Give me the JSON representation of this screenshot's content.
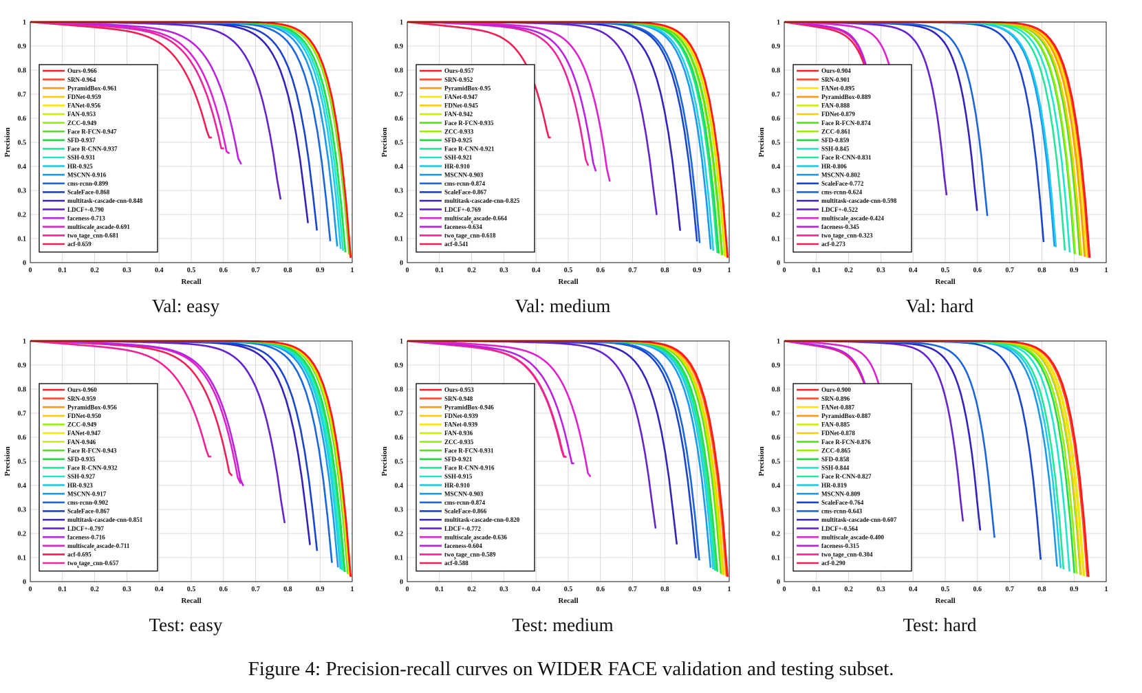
{
  "caption": "Figure 4: Precision-recall curves on WIDER FACE validation and testing subset.",
  "colors": {
    "Ours": "#ff1a1a",
    "SRN": "#ff4d26",
    "PyramidBox": "#ff9910",
    "FDNet": "#ffcc00",
    "FANet": "#ffe600",
    "FAN": "#c8f000",
    "ZCC": "#99ee00",
    "Face R-FCN": "#55e020",
    "SFD": "#22dd44",
    "Face R-CNN": "#22e699",
    "SSH": "#1ee6cc",
    "HR": "#22ccee",
    "MSCNN": "#1a99ee",
    "cms-rcnn": "#1a66dd",
    "ScaleFace": "#1a44cc",
    "multitask-cascade-cnn": "#3322bb",
    "LDCF+": "#6622cc",
    "faceness": "#bb22dd",
    "multiscale_cascade": "#dd22cc",
    "two_stage_cnn": "#ee2299",
    "acf": "#ee1f55"
  },
  "chart_data": [
    {
      "type": "line",
      "title": "Val: easy",
      "xlabel": "Recall",
      "ylabel": "Precision",
      "xlim": [
        0,
        1
      ],
      "ylim": [
        0,
        1
      ],
      "xticks": [
        "0",
        "0.1",
        "0.2",
        "0.3",
        "0.4",
        "0.5",
        "0.6",
        "0.7",
        "0.8",
        "0.9",
        "1"
      ],
      "yticks": [
        "0",
        "0.1",
        "0.2",
        "0.3",
        "0.4",
        "0.5",
        "0.6",
        "0.7",
        "0.8",
        "0.9",
        "1"
      ],
      "legend_position": "bottom-left",
      "series": [
        {
          "name": "Ours",
          "label": "Ours-0.966",
          "ap": 0.966
        },
        {
          "name": "SRN",
          "label": "SRN-0.964",
          "ap": 0.964
        },
        {
          "name": "PyramidBox",
          "label": "PyramidBox-0.961",
          "ap": 0.961
        },
        {
          "name": "FDNet",
          "label": "FDNet-0.959",
          "ap": 0.959
        },
        {
          "name": "FANet",
          "label": "FANet-0.956",
          "ap": 0.956
        },
        {
          "name": "FAN",
          "label": "FAN-0.953",
          "ap": 0.953
        },
        {
          "name": "ZCC",
          "label": "ZCC-0.949",
          "ap": 0.949
        },
        {
          "name": "Face R-FCN",
          "label": "Face R-FCN-0.947",
          "ap": 0.947
        },
        {
          "name": "SFD",
          "label": "SFD-0.937",
          "ap": 0.937
        },
        {
          "name": "Face R-CNN",
          "label": "Face R-CNN-0.937",
          "ap": 0.937
        },
        {
          "name": "SSH",
          "label": "SSH-0.931",
          "ap": 0.931
        },
        {
          "name": "HR",
          "label": "HR-0.925",
          "ap": 0.925
        },
        {
          "name": "MSCNN",
          "label": "MSCNN-0.916",
          "ap": 0.916
        },
        {
          "name": "cms-rcnn",
          "label": "cms-rcnn-0.899",
          "ap": 0.899
        },
        {
          "name": "ScaleFace",
          "label": "ScaleFace-0.868",
          "ap": 0.868
        },
        {
          "name": "multitask-cascade-cnn",
          "label": "multitask-cascade-cnn-0.848",
          "ap": 0.848
        },
        {
          "name": "LDCF+",
          "label": "LDCF+-0.790",
          "ap": 0.79
        },
        {
          "name": "faceness",
          "label": "faceness-0.713",
          "ap": 0.713
        },
        {
          "name": "multiscale_cascade",
          "label": "multiscale_cascade-0.691",
          "ap": 0.691
        },
        {
          "name": "two_stage_cnn",
          "label": "two_stage_cnn-0.681",
          "ap": 0.681
        },
        {
          "name": "acf",
          "label": "acf-0.659",
          "ap": 0.659
        }
      ]
    },
    {
      "type": "line",
      "title": "Val: medium",
      "xlabel": "Recall",
      "ylabel": "Precision",
      "xlim": [
        0,
        1
      ],
      "ylim": [
        0,
        1
      ],
      "xticks": [
        "0",
        "0.1",
        "0.2",
        "0.3",
        "0.4",
        "0.5",
        "0.6",
        "0.7",
        "0.8",
        "0.9",
        "1"
      ],
      "yticks": [
        "0",
        "0.1",
        "0.2",
        "0.3",
        "0.4",
        "0.5",
        "0.6",
        "0.7",
        "0.8",
        "0.9",
        "1"
      ],
      "legend_position": "bottom-left",
      "series": [
        {
          "name": "Ours",
          "label": "Ours-0.957",
          "ap": 0.957
        },
        {
          "name": "SRN",
          "label": "SRN-0.952",
          "ap": 0.952
        },
        {
          "name": "PyramidBox",
          "label": "PyramidBox-0.95",
          "ap": 0.95
        },
        {
          "name": "FANet",
          "label": "FANet-0.947",
          "ap": 0.947
        },
        {
          "name": "FDNet",
          "label": "FDNet-0.945",
          "ap": 0.945
        },
        {
          "name": "FAN",
          "label": "FAN-0.942",
          "ap": 0.942
        },
        {
          "name": "Face R-FCN",
          "label": "Face R-FCN-0.935",
          "ap": 0.935
        },
        {
          "name": "ZCC",
          "label": "ZCC-0.933",
          "ap": 0.933
        },
        {
          "name": "SFD",
          "label": "SFD-0.925",
          "ap": 0.925
        },
        {
          "name": "Face R-CNN",
          "label": "Face R-CNN-0.921",
          "ap": 0.921
        },
        {
          "name": "SSH",
          "label": "SSH-0.921",
          "ap": 0.921
        },
        {
          "name": "HR",
          "label": "HR-0.910",
          "ap": 0.91
        },
        {
          "name": "MSCNN",
          "label": "MSCNN-0.903",
          "ap": 0.903
        },
        {
          "name": "cms-rcnn",
          "label": "cms-rcnn-0.874",
          "ap": 0.874
        },
        {
          "name": "ScaleFace",
          "label": "ScaleFace-0.867",
          "ap": 0.867
        },
        {
          "name": "multitask-cascade-cnn",
          "label": "multitask-cascade-cnn-0.825",
          "ap": 0.825
        },
        {
          "name": "LDCF+",
          "label": "LDCF+-0.769",
          "ap": 0.769
        },
        {
          "name": "multiscale_cascade",
          "label": "multiscale_cascade-0.664",
          "ap": 0.664
        },
        {
          "name": "faceness",
          "label": "faceness-0.634",
          "ap": 0.634
        },
        {
          "name": "two_stage_cnn",
          "label": "two_stage_cnn-0.618",
          "ap": 0.618
        },
        {
          "name": "acf",
          "label": "acf-0.541",
          "ap": 0.541
        }
      ]
    },
    {
      "type": "line",
      "title": "Val: hard",
      "xlabel": "Recall",
      "ylabel": "Precision",
      "xlim": [
        0,
        1
      ],
      "ylim": [
        0,
        1
      ],
      "xticks": [
        "0",
        "0.1",
        "0.2",
        "0.3",
        "0.4",
        "0.5",
        "0.6",
        "0.7",
        "0.8",
        "0.9",
        "1"
      ],
      "yticks": [
        "0",
        "0.1",
        "0.2",
        "0.3",
        "0.4",
        "0.5",
        "0.6",
        "0.7",
        "0.8",
        "0.9",
        "1"
      ],
      "legend_position": "bottom-left",
      "series": [
        {
          "name": "Ours",
          "label": "Ours-0.904",
          "ap": 0.904
        },
        {
          "name": "SRN",
          "label": "SRN-0.901",
          "ap": 0.901
        },
        {
          "name": "FANet",
          "label": "FANet-0.895",
          "ap": 0.895
        },
        {
          "name": "PyramidBox",
          "label": "PyramidBox-0.889",
          "ap": 0.889
        },
        {
          "name": "FAN",
          "label": "FAN-0.888",
          "ap": 0.888
        },
        {
          "name": "FDNet",
          "label": "FDNet-0.879",
          "ap": 0.879
        },
        {
          "name": "Face R-FCN",
          "label": "Face R-FCN-0.874",
          "ap": 0.874
        },
        {
          "name": "ZCC",
          "label": "ZCC-0.861",
          "ap": 0.861
        },
        {
          "name": "SFD",
          "label": "SFD-0.859",
          "ap": 0.859
        },
        {
          "name": "SSH",
          "label": "SSH-0.845",
          "ap": 0.845
        },
        {
          "name": "Face R-CNN",
          "label": "Face R-CNN-0.831",
          "ap": 0.831
        },
        {
          "name": "HR",
          "label": "HR-0.806",
          "ap": 0.806
        },
        {
          "name": "MSCNN",
          "label": "MSCNN-0.802",
          "ap": 0.802
        },
        {
          "name": "ScaleFace",
          "label": "ScaleFace-0.772",
          "ap": 0.772
        },
        {
          "name": "cms-rcnn",
          "label": "cms-rcnn-0.624",
          "ap": 0.624
        },
        {
          "name": "multitask-cascade-cnn",
          "label": "multitask-cascade-cnn-0.598",
          "ap": 0.598
        },
        {
          "name": "LDCF+",
          "label": "LDCF+-0.522",
          "ap": 0.522
        },
        {
          "name": "multiscale_cascade",
          "label": "multiscale_cascade-0.424",
          "ap": 0.424
        },
        {
          "name": "faceness",
          "label": "faceness-0.345",
          "ap": 0.345
        },
        {
          "name": "two_stage_cnn",
          "label": "two_stage_cnn-0.323",
          "ap": 0.323
        },
        {
          "name": "acf",
          "label": "acf-0.273",
          "ap": 0.273
        }
      ]
    },
    {
      "type": "line",
      "title": "Test: easy",
      "xlabel": "Recall",
      "ylabel": "Precision",
      "xlim": [
        0,
        1
      ],
      "ylim": [
        0,
        1
      ],
      "xticks": [
        "0",
        "0.1",
        "0.2",
        "0.3",
        "0.4",
        "0.5",
        "0.6",
        "0.7",
        "0.8",
        "0.9",
        "1"
      ],
      "yticks": [
        "0",
        "0.1",
        "0.2",
        "0.3",
        "0.4",
        "0.5",
        "0.6",
        "0.7",
        "0.8",
        "0.9",
        "1"
      ],
      "legend_position": "bottom-left",
      "series": [
        {
          "name": "Ours",
          "label": "Ours-0.960",
          "ap": 0.96
        },
        {
          "name": "SRN",
          "label": "SRN-0.959",
          "ap": 0.959
        },
        {
          "name": "PyramidBox",
          "label": "PyramidBox-0.956",
          "ap": 0.956
        },
        {
          "name": "FDNet",
          "label": "FDNet-0.950",
          "ap": 0.95
        },
        {
          "name": "ZCC",
          "label": "ZCC-0.949",
          "ap": 0.949
        },
        {
          "name": "FANet",
          "label": "FANet-0.947",
          "ap": 0.947
        },
        {
          "name": "FAN",
          "label": "FAN-0.946",
          "ap": 0.946
        },
        {
          "name": "Face R-FCN",
          "label": "Face R-FCN-0.943",
          "ap": 0.943
        },
        {
          "name": "SFD",
          "label": "SFD-0.935",
          "ap": 0.935
        },
        {
          "name": "Face R-CNN",
          "label": "Face R-CNN-0.932",
          "ap": 0.932
        },
        {
          "name": "SSH",
          "label": "SSH-0.927",
          "ap": 0.927
        },
        {
          "name": "HR",
          "label": "HR-0.923",
          "ap": 0.923
        },
        {
          "name": "MSCNN",
          "label": "MSCNN-0.917",
          "ap": 0.917
        },
        {
          "name": "cms-rcnn",
          "label": "cms-rcnn-0.902",
          "ap": 0.902
        },
        {
          "name": "ScaleFace",
          "label": "ScaleFace-0.867",
          "ap": 0.867
        },
        {
          "name": "multitask-cascade-cnn",
          "label": "multitask-cascade-cnn-0.851",
          "ap": 0.851
        },
        {
          "name": "LDCF+",
          "label": "LDCF+-0.797",
          "ap": 0.797
        },
        {
          "name": "faceness",
          "label": "faceness-0.716",
          "ap": 0.716
        },
        {
          "name": "multiscale_cascade",
          "label": "multiscale_cascade-0.711",
          "ap": 0.711
        },
        {
          "name": "acf",
          "label": "acf-0.695",
          "ap": 0.695
        },
        {
          "name": "two_stage_cnn",
          "label": "two_stage_cnn-0.657",
          "ap": 0.657
        }
      ]
    },
    {
      "type": "line",
      "title": "Test: medium",
      "xlabel": "Recall",
      "ylabel": "Precision",
      "xlim": [
        0,
        1
      ],
      "ylim": [
        0,
        1
      ],
      "xticks": [
        "0",
        "0.1",
        "0.2",
        "0.3",
        "0.4",
        "0.5",
        "0.6",
        "0.7",
        "0.8",
        "0.9",
        "1"
      ],
      "yticks": [
        "0",
        "0.1",
        "0.2",
        "0.3",
        "0.4",
        "0.5",
        "0.6",
        "0.7",
        "0.8",
        "0.9",
        "1"
      ],
      "legend_position": "bottom-left",
      "series": [
        {
          "name": "Ours",
          "label": "Ours-0.953",
          "ap": 0.953
        },
        {
          "name": "SRN",
          "label": "SRN-0.948",
          "ap": 0.948
        },
        {
          "name": "PyramidBox",
          "label": "PyramidBox-0.946",
          "ap": 0.946
        },
        {
          "name": "FDNet",
          "label": "FDNet-0.939",
          "ap": 0.939
        },
        {
          "name": "FANet",
          "label": "FANet-0.939",
          "ap": 0.939
        },
        {
          "name": "FAN",
          "label": "FAN-0.936",
          "ap": 0.936
        },
        {
          "name": "ZCC",
          "label": "ZCC-0.935",
          "ap": 0.935
        },
        {
          "name": "Face R-FCN",
          "label": "Face R-FCN-0.931",
          "ap": 0.931
        },
        {
          "name": "SFD",
          "label": "SFD-0.921",
          "ap": 0.921
        },
        {
          "name": "Face R-CNN",
          "label": "Face R-CNN-0.916",
          "ap": 0.916
        },
        {
          "name": "SSH",
          "label": "SSH-0.915",
          "ap": 0.915
        },
        {
          "name": "HR",
          "label": "HR-0.910",
          "ap": 0.91
        },
        {
          "name": "MSCNN",
          "label": "MSCNN-0.903",
          "ap": 0.903
        },
        {
          "name": "cms-rcnn",
          "label": "cms-rcnn-0.874",
          "ap": 0.874
        },
        {
          "name": "ScaleFace",
          "label": "ScaleFace-0.866",
          "ap": 0.866
        },
        {
          "name": "multitask-cascade-cnn",
          "label": "multitask-cascade-cnn-0.820",
          "ap": 0.82
        },
        {
          "name": "LDCF+",
          "label": "LDCF+-0.772",
          "ap": 0.772
        },
        {
          "name": "multiscale_cascade",
          "label": "multiscale_cascade-0.636",
          "ap": 0.636
        },
        {
          "name": "faceness",
          "label": "faceness-0.604",
          "ap": 0.604
        },
        {
          "name": "two_stage_cnn",
          "label": "two_stage_cnn-0.589",
          "ap": 0.589
        },
        {
          "name": "acf",
          "label": "acf-0.588",
          "ap": 0.588
        }
      ]
    },
    {
      "type": "line",
      "title": "Test: hard",
      "xlabel": "Recall",
      "ylabel": "Precision",
      "xlim": [
        0,
        1
      ],
      "ylim": [
        0,
        1
      ],
      "xticks": [
        "0",
        "0.1",
        "0.2",
        "0.3",
        "0.4",
        "0.5",
        "0.6",
        "0.7",
        "0.8",
        "0.9",
        "1"
      ],
      "yticks": [
        "0",
        "0.1",
        "0.2",
        "0.3",
        "0.4",
        "0.5",
        "0.6",
        "0.7",
        "0.8",
        "0.9",
        "1"
      ],
      "legend_position": "bottom-left",
      "series": [
        {
          "name": "Ours",
          "label": "Ours-0.900",
          "ap": 0.9
        },
        {
          "name": "SRN",
          "label": "SRN-0.896",
          "ap": 0.896
        },
        {
          "name": "FANet",
          "label": "FANet-0.887",
          "ap": 0.887
        },
        {
          "name": "PyramidBox",
          "label": "PyramidBox-0.887",
          "ap": 0.887
        },
        {
          "name": "FAN",
          "label": "FAN-0.885",
          "ap": 0.885
        },
        {
          "name": "FDNet",
          "label": "FDNet-0.878",
          "ap": 0.878
        },
        {
          "name": "Face R-FCN",
          "label": "Face R-FCN-0.876",
          "ap": 0.876
        },
        {
          "name": "ZCC",
          "label": "ZCC-0.865",
          "ap": 0.865
        },
        {
          "name": "SFD",
          "label": "SFD-0.858",
          "ap": 0.858
        },
        {
          "name": "SSH",
          "label": "SSH-0.844",
          "ap": 0.844
        },
        {
          "name": "Face R-CNN",
          "label": "Face R-CNN-0.827",
          "ap": 0.827
        },
        {
          "name": "HR",
          "label": "HR-0.819",
          "ap": 0.819
        },
        {
          "name": "MSCNN",
          "label": "MSCNN-0.809",
          "ap": 0.809
        },
        {
          "name": "ScaleFace",
          "label": "ScaleFace-0.764",
          "ap": 0.764
        },
        {
          "name": "cms-rcnn",
          "label": "cms-rcnn-0.643",
          "ap": 0.643
        },
        {
          "name": "multitask-cascade-cnn",
          "label": "multitask-cascade-cnn-0.607",
          "ap": 0.607
        },
        {
          "name": "LDCF+",
          "label": "LDCF+-0.564",
          "ap": 0.564
        },
        {
          "name": "multiscale_cascade",
          "label": "multiscale_cascade-0.400",
          "ap": 0.4
        },
        {
          "name": "faceness",
          "label": "faceness-0.315",
          "ap": 0.315
        },
        {
          "name": "two_stage_cnn",
          "label": "two_stage_cnn-0.304",
          "ap": 0.304
        },
        {
          "name": "acf",
          "label": "acf-0.290",
          "ap": 0.29
        }
      ]
    }
  ]
}
